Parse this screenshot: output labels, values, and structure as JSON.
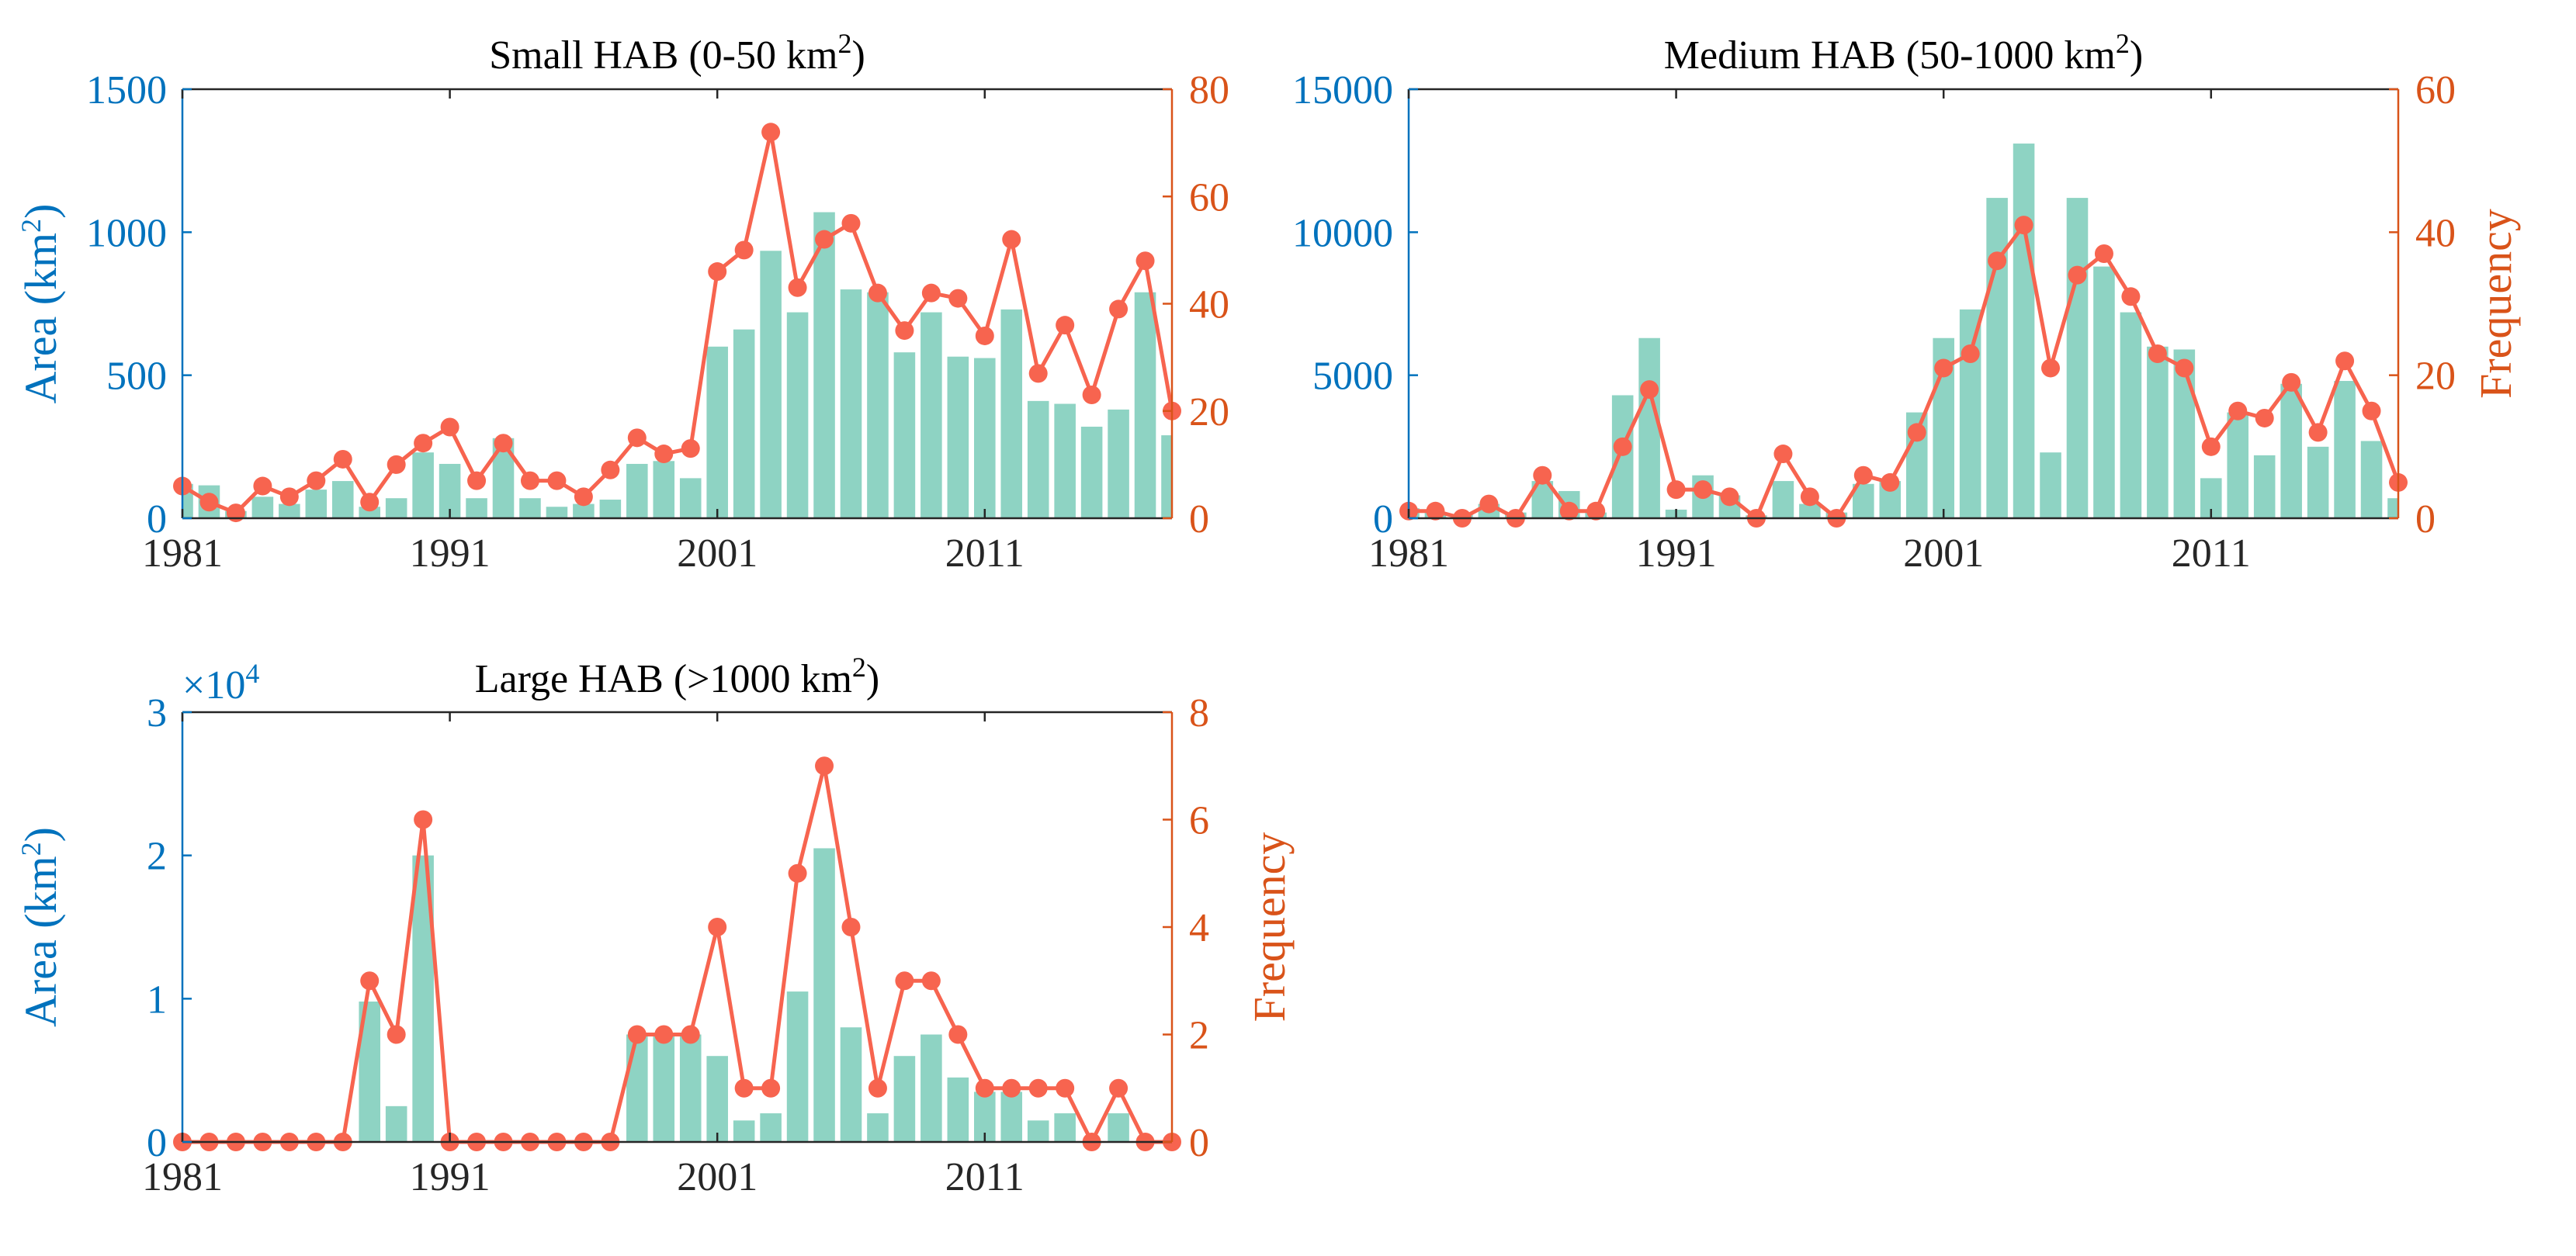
{
  "colors": {
    "area_axis": "#0072BD",
    "freq_axis": "#D95319",
    "bar_fill": "#8ED3C3",
    "line": "#F7644F",
    "axis_black": "#262626"
  },
  "chart_data": [
    {
      "type": "bar",
      "title": "Small HAB (0-50 km",
      "title_sup": "2",
      "title_end": ")",
      "ylabel_left": "Area (km",
      "ylabel_left_sup": "2",
      "ylabel_left_end": ")",
      "ylabel_right": "",
      "y_multiplier": "",
      "y_multiplier_exp": "",
      "x_tick_labels": [
        "1981",
        "1991",
        "2001",
        "2011"
      ],
      "left_tick_labels": [
        "0",
        "500",
        "1000",
        "1500"
      ],
      "right_tick_labels": [
        "0",
        "20",
        "40",
        "60",
        "80"
      ],
      "xlim": [
        1981,
        2018
      ],
      "ylim_left": [
        0,
        1500
      ],
      "ylim_right": [
        0,
        80
      ],
      "grid": false,
      "series": [
        {
          "axis": "left",
          "kind": "bar",
          "x": [
            1981,
            1982,
            1983,
            1984,
            1985,
            1986,
            1987,
            1988,
            1989,
            1990,
            1991,
            1992,
            1993,
            1994,
            1995,
            1996,
            1997,
            1998,
            1999,
            2000,
            2001,
            2002,
            2003,
            2004,
            2005,
            2006,
            2007,
            2008,
            2009,
            2010,
            2011,
            2012,
            2013,
            2014,
            2015,
            2016,
            2017,
            2018
          ],
          "values": [
            120,
            115,
            25,
            75,
            50,
            100,
            130,
            40,
            70,
            230,
            190,
            70,
            280,
            70,
            40,
            50,
            65,
            190,
            200,
            140,
            600,
            660,
            935,
            720,
            1070,
            800,
            790,
            580,
            720,
            565,
            560,
            730,
            410,
            400,
            320,
            380,
            790,
            290
          ]
        },
        {
          "axis": "right",
          "kind": "line",
          "x": [
            1981,
            1982,
            1983,
            1984,
            1985,
            1986,
            1987,
            1988,
            1989,
            1990,
            1991,
            1992,
            1993,
            1994,
            1995,
            1996,
            1997,
            1998,
            1999,
            2000,
            2001,
            2002,
            2003,
            2004,
            2005,
            2006,
            2007,
            2008,
            2009,
            2010,
            2011,
            2012,
            2013,
            2014,
            2015,
            2016,
            2017,
            2018
          ],
          "values": [
            6,
            3,
            1,
            6,
            4,
            7,
            11,
            3,
            10,
            14,
            17,
            7,
            14,
            7,
            7,
            4,
            9,
            15,
            12,
            13,
            46,
            50,
            72,
            43,
            52,
            55,
            42,
            35,
            42,
            41,
            34,
            52,
            27,
            36,
            23,
            39,
            48,
            20
          ]
        }
      ]
    },
    {
      "type": "bar",
      "title": "Medium HAB (50-1000 km",
      "title_sup": "2",
      "title_end": ")",
      "ylabel_left": "",
      "ylabel_left_sup": "",
      "ylabel_left_end": "",
      "ylabel_right": "Frequency",
      "y_multiplier": "",
      "y_multiplier_exp": "",
      "x_tick_labels": [
        "1981",
        "1991",
        "2001",
        "2011"
      ],
      "left_tick_labels": [
        "0",
        "5000",
        "10000",
        "15000"
      ],
      "right_tick_labels": [
        "0",
        "20",
        "40",
        "60"
      ],
      "xlim": [
        1981,
        2018
      ],
      "ylim_left": [
        0,
        15000
      ],
      "ylim_right": [
        0,
        60
      ],
      "grid": false,
      "series": [
        {
          "axis": "left",
          "kind": "bar",
          "x": [
            1981,
            1982,
            1983,
            1984,
            1985,
            1986,
            1987,
            1988,
            1989,
            1990,
            1991,
            1992,
            1993,
            1994,
            1995,
            1996,
            1997,
            1998,
            1999,
            2000,
            2001,
            2002,
            2003,
            2004,
            2005,
            2006,
            2007,
            2008,
            2009,
            2010,
            2011,
            2012,
            2013,
            2014,
            2015,
            2016,
            2017,
            2018
          ],
          "values": [
            350,
            200,
            150,
            500,
            200,
            1300,
            950,
            200,
            4300,
            6300,
            300,
            1500,
            800,
            100,
            1300,
            500,
            200,
            1200,
            1300,
            3700,
            6300,
            7300,
            11200,
            13100,
            2300,
            11200,
            8800,
            7200,
            6000,
            5900,
            1400,
            3700,
            2200,
            4700,
            2500,
            4800,
            2700,
            700
          ]
        },
        {
          "axis": "right",
          "kind": "line",
          "x": [
            1981,
            1982,
            1983,
            1984,
            1985,
            1986,
            1987,
            1988,
            1989,
            1990,
            1991,
            1992,
            1993,
            1994,
            1995,
            1996,
            1997,
            1998,
            1999,
            2000,
            2001,
            2002,
            2003,
            2004,
            2005,
            2006,
            2007,
            2008,
            2009,
            2010,
            2011,
            2012,
            2013,
            2014,
            2015,
            2016,
            2017,
            2018
          ],
          "values": [
            1,
            1,
            0,
            2,
            0,
            6,
            1,
            1,
            10,
            18,
            4,
            4,
            3,
            0,
            9,
            3,
            0,
            6,
            5,
            12,
            21,
            23,
            36,
            41,
            21,
            34,
            37,
            31,
            23,
            21,
            10,
            15,
            14,
            19,
            12,
            22,
            15,
            5
          ]
        }
      ]
    },
    {
      "type": "bar",
      "title": "Large HAB (>1000 km",
      "title_sup": "2",
      "title_end": ")",
      "ylabel_left": "Area (km",
      "ylabel_left_sup": "2",
      "ylabel_left_end": ")",
      "ylabel_right": "Frequency",
      "y_multiplier": "×10",
      "y_multiplier_exp": "4",
      "x_tick_labels": [
        "1981",
        "1991",
        "2001",
        "2011"
      ],
      "left_tick_labels": [
        "0",
        "1",
        "2",
        "3"
      ],
      "right_tick_labels": [
        "0",
        "2",
        "4",
        "6",
        "8"
      ],
      "xlim": [
        1981,
        2018
      ],
      "ylim_left": [
        0,
        30000
      ],
      "ylim_right": [
        0,
        8
      ],
      "grid": false,
      "series": [
        {
          "axis": "left",
          "kind": "bar",
          "x": [
            1981,
            1982,
            1983,
            1984,
            1985,
            1986,
            1987,
            1988,
            1989,
            1990,
            1991,
            1992,
            1993,
            1994,
            1995,
            1996,
            1997,
            1998,
            1999,
            2000,
            2001,
            2002,
            2003,
            2004,
            2005,
            2006,
            2007,
            2008,
            2009,
            2010,
            2011,
            2012,
            2013,
            2014,
            2015,
            2016,
            2017,
            2018
          ],
          "values": [
            0,
            0,
            0,
            0,
            0,
            0,
            0,
            9800,
            2500,
            20000,
            0,
            0,
            0,
            0,
            0,
            0,
            0,
            7500,
            7500,
            7500,
            6000,
            1500,
            2000,
            10500,
            20500,
            8000,
            2000,
            6000,
            7500,
            4500,
            3500,
            3500,
            1500,
            2000,
            0,
            2000,
            0,
            0
          ]
        },
        {
          "axis": "right",
          "kind": "line",
          "x": [
            1981,
            1982,
            1983,
            1984,
            1985,
            1986,
            1987,
            1988,
            1989,
            1990,
            1991,
            1992,
            1993,
            1994,
            1995,
            1996,
            1997,
            1998,
            1999,
            2000,
            2001,
            2002,
            2003,
            2004,
            2005,
            2006,
            2007,
            2008,
            2009,
            2010,
            2011,
            2012,
            2013,
            2014,
            2015,
            2016,
            2017,
            2018
          ],
          "values": [
            0,
            0,
            0,
            0,
            0,
            0,
            0,
            3,
            2,
            6,
            0,
            0,
            0,
            0,
            0,
            0,
            0,
            2,
            2,
            2,
            4,
            1,
            1,
            5,
            7,
            4,
            1,
            3,
            3,
            2,
            1,
            1,
            1,
            1,
            0,
            1,
            0,
            0
          ]
        }
      ]
    }
  ]
}
